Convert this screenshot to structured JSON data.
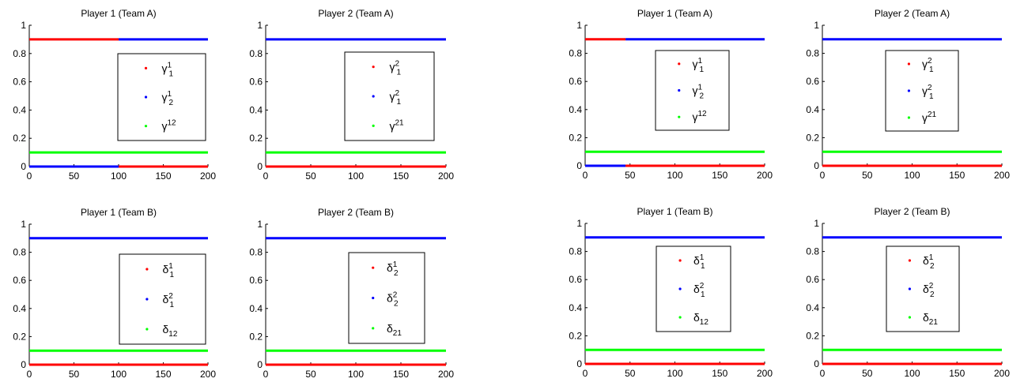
{
  "colors": {
    "red": "#ff0000",
    "blue": "#0000ff",
    "green": "#00ff00",
    "axis": "#000000"
  },
  "chart_data": [
    {
      "type": "line",
      "title": "Player 1 (Team A)",
      "xlim": [
        0,
        200
      ],
      "ylim": [
        0,
        1
      ],
      "xticks": [
        "0",
        "50",
        "100",
        "150",
        "200"
      ],
      "yticks": [
        "0",
        "0.2",
        "0.4",
        "0.6",
        "0.8",
        "1"
      ],
      "legend_location": "right",
      "series": [
        {
          "name": "γ_1^1",
          "color": "red",
          "segments": [
            {
              "x": [
                0,
                100
              ],
              "y": [
                0.9,
                0.9
              ]
            },
            {
              "x": [
                100,
                200
              ],
              "y": [
                0,
                0
              ]
            }
          ]
        },
        {
          "name": "γ_2^1",
          "color": "blue",
          "segments": [
            {
              "x": [
                0,
                100
              ],
              "y": [
                0,
                0
              ]
            },
            {
              "x": [
                100,
                200
              ],
              "y": [
                0.9,
                0.9
              ]
            }
          ]
        },
        {
          "name": "γ^12",
          "color": "green",
          "segments": [
            {
              "x": [
                0,
                200
              ],
              "y": [
                0.1,
                0.1
              ]
            }
          ]
        }
      ]
    },
    {
      "type": "line",
      "title": "Player 2 (Team A)",
      "xlim": [
        0,
        200
      ],
      "ylim": [
        0,
        1
      ],
      "xticks": [
        "0",
        "50",
        "100",
        "150",
        "200"
      ],
      "yticks": [
        "0",
        "0.2",
        "0.4",
        "0.6",
        "0.8",
        "1"
      ],
      "legend_location": "right",
      "series": [
        {
          "name": "γ_1^2",
          "color": "red",
          "segments": [
            {
              "x": [
                0,
                200
              ],
              "y": [
                0,
                0
              ]
            }
          ]
        },
        {
          "name": "γ_1^2",
          "color": "blue",
          "segments": [
            {
              "x": [
                0,
                200
              ],
              "y": [
                0.9,
                0.9
              ]
            }
          ]
        },
        {
          "name": "γ^21",
          "color": "green",
          "segments": [
            {
              "x": [
                0,
                200
              ],
              "y": [
                0.1,
                0.1
              ]
            }
          ]
        }
      ]
    },
    {
      "type": "line",
      "title": "Player 1 (Team A)",
      "xlim": [
        0,
        200
      ],
      "ylim": [
        0,
        1
      ],
      "xticks": [
        "0",
        "50",
        "100",
        "150",
        "200"
      ],
      "yticks": [
        "0",
        "0.2",
        "0.4",
        "0.6",
        "0.8",
        "1"
      ],
      "legend_location": "center",
      "series": [
        {
          "name": "γ_1^1",
          "color": "red",
          "segments": [
            {
              "x": [
                0,
                45
              ],
              "y": [
                0.9,
                0.9
              ]
            },
            {
              "x": [
                45,
                200
              ],
              "y": [
                0,
                0
              ]
            }
          ]
        },
        {
          "name": "γ_2^1",
          "color": "blue",
          "segments": [
            {
              "x": [
                0,
                45
              ],
              "y": [
                0,
                0
              ]
            },
            {
              "x": [
                45,
                200
              ],
              "y": [
                0.9,
                0.9
              ]
            }
          ]
        },
        {
          "name": "γ^12",
          "color": "green",
          "segments": [
            {
              "x": [
                0,
                200
              ],
              "y": [
                0.1,
                0.1
              ]
            }
          ]
        }
      ]
    },
    {
      "type": "line",
      "title": "Player 2 (Team A)",
      "xlim": [
        0,
        200
      ],
      "ylim": [
        0,
        1
      ],
      "xticks": [
        "0",
        "50",
        "100",
        "150",
        "200"
      ],
      "yticks": [
        "0",
        "0.2",
        "0.4",
        "0.6",
        "0.8",
        "1"
      ],
      "legend_location": "center",
      "series": [
        {
          "name": "γ_1^2",
          "color": "red",
          "segments": [
            {
              "x": [
                0,
                200
              ],
              "y": [
                0,
                0
              ]
            }
          ]
        },
        {
          "name": "γ_1^2",
          "color": "blue",
          "segments": [
            {
              "x": [
                0,
                200
              ],
              "y": [
                0.9,
                0.9
              ]
            }
          ]
        },
        {
          "name": "γ^21",
          "color": "green",
          "segments": [
            {
              "x": [
                0,
                200
              ],
              "y": [
                0.1,
                0.1
              ]
            }
          ]
        }
      ]
    },
    {
      "type": "line",
      "title": "Player 1 (Team B)",
      "xlim": [
        0,
        200
      ],
      "ylim": [
        0,
        1
      ],
      "xticks": [
        "0",
        "50",
        "100",
        "150",
        "200"
      ],
      "yticks": [
        "0",
        "0.2",
        "0.4",
        "0.6",
        "0.8",
        "1"
      ],
      "legend_location": "right",
      "series": [
        {
          "name": "δ_1^1",
          "color": "red",
          "segments": [
            {
              "x": [
                0,
                200
              ],
              "y": [
                0,
                0
              ]
            }
          ]
        },
        {
          "name": "δ_1^2",
          "color": "blue",
          "segments": [
            {
              "x": [
                0,
                200
              ],
              "y": [
                0.9,
                0.9
              ]
            }
          ]
        },
        {
          "name": "δ_12",
          "color": "green",
          "segments": [
            {
              "x": [
                0,
                200
              ],
              "y": [
                0.1,
                0.1
              ]
            }
          ]
        }
      ]
    },
    {
      "type": "line",
      "title": "Player 2 (Team B)",
      "xlim": [
        0,
        200
      ],
      "ylim": [
        0,
        1
      ],
      "xticks": [
        "0",
        "50",
        "100",
        "150",
        "200"
      ],
      "yticks": [
        "0",
        "0.2",
        "0.4",
        "0.6",
        "0.8",
        "1"
      ],
      "legend_location": "right",
      "series": [
        {
          "name": "δ_2^1",
          "color": "red",
          "segments": [
            {
              "x": [
                0,
                200
              ],
              "y": [
                0,
                0
              ]
            }
          ]
        },
        {
          "name": "δ_2^2",
          "color": "blue",
          "segments": [
            {
              "x": [
                0,
                200
              ],
              "y": [
                0.9,
                0.9
              ]
            }
          ]
        },
        {
          "name": "δ_21",
          "color": "green",
          "segments": [
            {
              "x": [
                0,
                200
              ],
              "y": [
                0.1,
                0.1
              ]
            }
          ]
        }
      ]
    },
    {
      "type": "line",
      "title": "Player 1 (Team B)",
      "xlim": [
        0,
        200
      ],
      "ylim": [
        0,
        1
      ],
      "xticks": [
        "0",
        "50",
        "100",
        "150",
        "200"
      ],
      "yticks": [
        "0",
        "0.2",
        "0.4",
        "0.6",
        "0.8",
        "1"
      ],
      "legend_location": "center",
      "series": [
        {
          "name": "δ_1^1",
          "color": "red",
          "segments": [
            {
              "x": [
                0,
                200
              ],
              "y": [
                0,
                0
              ]
            }
          ]
        },
        {
          "name": "δ_1^2",
          "color": "blue",
          "segments": [
            {
              "x": [
                0,
                200
              ],
              "y": [
                0.9,
                0.9
              ]
            }
          ]
        },
        {
          "name": "δ_12",
          "color": "green",
          "segments": [
            {
              "x": [
                0,
                200
              ],
              "y": [
                0.1,
                0.1
              ]
            }
          ]
        }
      ]
    },
    {
      "type": "line",
      "title": "Player 2 (Team B)",
      "xlim": [
        0,
        200
      ],
      "ylim": [
        0,
        1
      ],
      "xticks": [
        "0",
        "50",
        "100",
        "150",
        "200"
      ],
      "yticks": [
        "0",
        "0.2",
        "0.4",
        "0.6",
        "0.8",
        "1"
      ],
      "legend_location": "center",
      "series": [
        {
          "name": "δ_2^1",
          "color": "red",
          "segments": [
            {
              "x": [
                0,
                200
              ],
              "y": [
                0,
                0
              ]
            }
          ]
        },
        {
          "name": "δ_2^2",
          "color": "blue",
          "segments": [
            {
              "x": [
                0,
                200
              ],
              "y": [
                0.9,
                0.9
              ]
            }
          ]
        },
        {
          "name": "δ_21",
          "color": "green",
          "segments": [
            {
              "x": [
                0,
                200
              ],
              "y": [
                0.1,
                0.1
              ]
            }
          ]
        }
      ]
    }
  ]
}
